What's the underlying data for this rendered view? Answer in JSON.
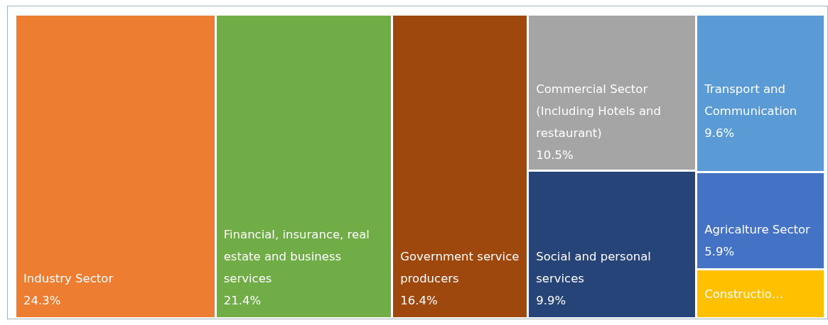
{
  "chart_data": {
    "type": "other",
    "categories": [
      "Industry Sector",
      "Financial, insurance, real estate and business services",
      "Government service producers",
      "Commercial Sector (Including Hotels and restaurant)",
      "Social and personal services",
      "Transport and Communication",
      "Agricalture Sector",
      "Constructio…"
    ],
    "values": [
      24.3,
      21.4,
      16.4,
      10.5,
      9.9,
      9.6,
      5.9,
      null
    ],
    "value_labels": [
      "24.3%",
      "21.4%",
      "16.4%",
      "10.5%",
      "9.9%",
      "9.6%",
      "5.9%",
      null
    ],
    "colors": [
      "#ed7d31",
      "#70ad47",
      "#9e480e",
      "#a5a5a5",
      "#264478",
      "#5b9bd5",
      "#4472c4",
      "#ffc000"
    ]
  }
}
